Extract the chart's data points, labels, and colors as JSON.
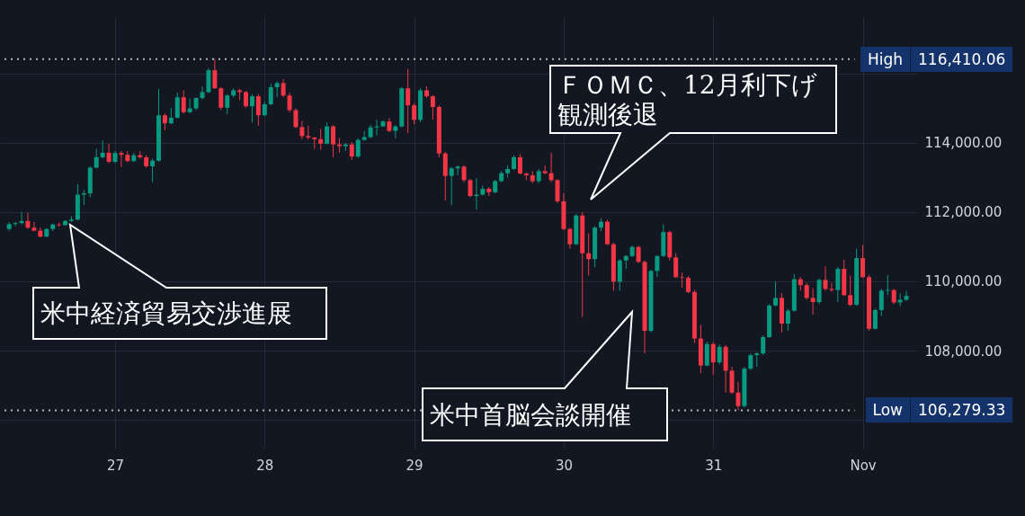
{
  "chart_data": {
    "type": "candlestick",
    "x": [
      "--10-26T07:00",
      "--10-26T08:00",
      "--10-26T09:00",
      "--10-26T10:00",
      "--10-26T11:00",
      "--10-26T12:00",
      "--10-26T13:00",
      "--10-26T14:00",
      "--10-26T15:00",
      "--10-26T16:00",
      "--10-26T17:00",
      "--10-26T18:00",
      "--10-26T19:00",
      "--10-26T20:00",
      "--10-26T21:00",
      "--10-26T22:00",
      "--10-26T23:00",
      "--10-27T00:00",
      "--10-27T01:00",
      "--10-27T02:00",
      "--10-27T03:00",
      "--10-27T04:00",
      "--10-27T05:00",
      "--10-27T06:00",
      "--10-27T07:00",
      "--10-27T08:00",
      "--10-27T09:00",
      "--10-27T10:00",
      "--10-27T11:00",
      "--10-27T12:00",
      "--10-27T13:00",
      "--10-27T14:00",
      "--10-27T15:00",
      "--10-27T16:00",
      "--10-27T17:00",
      "--10-27T18:00",
      "--10-27T19:00",
      "--10-27T20:00",
      "--10-27T21:00",
      "--10-27T22:00",
      "--10-27T23:00",
      "--10-28T00:00",
      "--10-28T01:00",
      "--10-28T02:00",
      "--10-28T03:00",
      "--10-28T04:00",
      "--10-28T05:00",
      "--10-28T06:00",
      "--10-28T07:00",
      "--10-28T08:00",
      "--10-28T09:00",
      "--10-28T10:00",
      "--10-28T11:00",
      "--10-28T12:00",
      "--10-28T13:00",
      "--10-28T14:00",
      "--10-28T15:00",
      "--10-28T16:00",
      "--10-28T17:00",
      "--10-28T18:00",
      "--10-28T19:00",
      "--10-28T20:00",
      "--10-28T21:00",
      "--10-28T22:00",
      "--10-28T23:00",
      "--10-29T00:00",
      "--10-29T01:00",
      "--10-29T02:00",
      "--10-29T03:00",
      "--10-29T04:00",
      "--10-29T05:00",
      "--10-29T06:00",
      "--10-29T07:00",
      "--10-29T08:00",
      "--10-29T09:00",
      "--10-29T10:00",
      "--10-29T11:00",
      "--10-29T12:00",
      "--10-29T13:00",
      "--10-29T14:00",
      "--10-29T15:00",
      "--10-29T16:00",
      "--10-29T17:00",
      "--10-29T18:00",
      "--10-29T19:00",
      "--10-29T20:00",
      "--10-29T21:00",
      "--10-29T22:00",
      "--10-29T23:00",
      "--10-30T00:00",
      "--10-30T01:00",
      "--10-30T02:00",
      "--10-30T03:00",
      "--10-30T04:00",
      "--10-30T05:00",
      "--10-30T06:00",
      "--10-30T07:00",
      "--10-30T08:00",
      "--10-30T09:00",
      "--10-30T10:00",
      "--10-30T11:00",
      "--10-30T12:00",
      "--10-30T13:00",
      "--10-30T14:00",
      "--10-30T15:00",
      "--10-30T16:00",
      "--10-30T17:00",
      "--10-30T18:00",
      "--10-30T19:00",
      "--10-30T20:00",
      "--10-30T21:00",
      "--10-30T22:00",
      "--10-30T23:00",
      "--10-31T00:00",
      "--10-31T01:00",
      "--10-31T02:00",
      "--10-31T03:00",
      "--10-31T04:00",
      "--10-31T05:00",
      "--10-31T06:00",
      "--10-31T07:00",
      "--10-31T08:00",
      "--10-31T09:00",
      "--10-31T10:00",
      "--10-31T11:00",
      "--10-31T12:00",
      "--10-31T13:00",
      "--10-31T14:00",
      "--10-31T15:00",
      "--10-31T16:00",
      "--10-31T17:00",
      "--10-31T18:00",
      "--10-31T19:00",
      "--10-31T20:00",
      "--10-31T21:00",
      "--10-31T22:00",
      "--10-31T23:00",
      "--11-01T00:00",
      "--11-01T01:00",
      "--11-01T02:00",
      "--11-01T03:00",
      "--11-01T04:00",
      "--11-01T05:00",
      "--11-01T06:00",
      "--11-01T07:00"
    ],
    "ohlc": [
      [
        111510,
        111710,
        111460,
        111650
      ],
      [
        111650,
        111720,
        111590,
        111680
      ],
      [
        111680,
        112000,
        111640,
        111740
      ],
      [
        111740,
        111980,
        111510,
        111550
      ],
      [
        111550,
        111710,
        111450,
        111460
      ],
      [
        111460,
        111550,
        111270,
        111290
      ],
      [
        111290,
        111530,
        111270,
        111510
      ],
      [
        111510,
        111660,
        111450,
        111640
      ],
      [
        111640,
        111690,
        111580,
        111620
      ],
      [
        111620,
        111770,
        111600,
        111740
      ],
      [
        111740,
        111880,
        111720,
        111780
      ],
      [
        111780,
        112800,
        111750,
        112500
      ],
      [
        112500,
        112630,
        112200,
        112540
      ],
      [
        112540,
        113320,
        112430,
        113280
      ],
      [
        113280,
        113820,
        113260,
        113580
      ],
      [
        113580,
        114060,
        113540,
        113710
      ],
      [
        113710,
        113970,
        113410,
        113450
      ],
      [
        113450,
        113760,
        113410,
        113700
      ],
      [
        113700,
        113760,
        113300,
        113650
      ],
      [
        113650,
        113760,
        113440,
        113470
      ],
      [
        113470,
        113710,
        113440,
        113640
      ],
      [
        113640,
        113760,
        113540,
        113580
      ],
      [
        113580,
        113640,
        113280,
        113320
      ],
      [
        113320,
        113540,
        112860,
        113480
      ],
      [
        113480,
        115550,
        113450,
        114790
      ],
      [
        114790,
        114840,
        114360,
        114560
      ],
      [
        114560,
        115010,
        114530,
        114720
      ],
      [
        114720,
        115440,
        114700,
        115310
      ],
      [
        115310,
        115510,
        114840,
        114880
      ],
      [
        114880,
        115270,
        114850,
        114990
      ],
      [
        114990,
        115300,
        114940,
        115290
      ],
      [
        115290,
        115630,
        115250,
        115460
      ],
      [
        115460,
        116150,
        115430,
        116090
      ],
      [
        116090,
        116410.06,
        115550,
        115570
      ],
      [
        115570,
        115600,
        114940,
        115010
      ],
      [
        115010,
        115400,
        114820,
        115360
      ],
      [
        115360,
        115570,
        115310,
        115510
      ],
      [
        115510,
        115550,
        115230,
        115460
      ],
      [
        115460,
        115490,
        115010,
        115050
      ],
      [
        115050,
        115400,
        114580,
        115340
      ],
      [
        115340,
        115400,
        114490,
        114790
      ],
      [
        114790,
        115180,
        114770,
        115110
      ],
      [
        115110,
        115700,
        115080,
        115600
      ],
      [
        115600,
        115770,
        115310,
        115720
      ],
      [
        115720,
        115830,
        115310,
        115360
      ],
      [
        115360,
        115440,
        114880,
        114940
      ],
      [
        114940,
        114990,
        114420,
        114450
      ],
      [
        114450,
        114620,
        114100,
        114190
      ],
      [
        114190,
        114490,
        114080,
        114150
      ],
      [
        114150,
        114160,
        113820,
        114100
      ],
      [
        114100,
        114400,
        113800,
        113970
      ],
      [
        113970,
        114580,
        113950,
        114470
      ],
      [
        114470,
        114510,
        113580,
        113950
      ],
      [
        113950,
        114130,
        113710,
        113900
      ],
      [
        113900,
        113990,
        113760,
        113950
      ],
      [
        113950,
        114020,
        113500,
        113600
      ],
      [
        113600,
        114130,
        113560,
        114080
      ],
      [
        114080,
        114340,
        114060,
        114160
      ],
      [
        114160,
        114510,
        114130,
        114440
      ],
      [
        114440,
        114660,
        114210,
        114470
      ],
      [
        114470,
        114650,
        114450,
        114610
      ],
      [
        114610,
        114710,
        114300,
        114340
      ],
      [
        114340,
        114510,
        114130,
        114470
      ],
      [
        114470,
        115600,
        114440,
        115570
      ],
      [
        115570,
        116130,
        114270,
        115080
      ],
      [
        115080,
        115140,
        114530,
        114660
      ],
      [
        114660,
        115570,
        114590,
        115510
      ],
      [
        115510,
        115630,
        115290,
        115340
      ],
      [
        115340,
        115370,
        114660,
        115030
      ],
      [
        115030,
        115080,
        113580,
        113690
      ],
      [
        113690,
        113730,
        112330,
        113040
      ],
      [
        113040,
        113300,
        112200,
        113260
      ],
      [
        113260,
        113350,
        113060,
        113310
      ],
      [
        113310,
        113350,
        112860,
        112920
      ],
      [
        112920,
        112950,
        112430,
        112460
      ],
      [
        112460,
        112980,
        112070,
        112500
      ],
      [
        112500,
        112760,
        112480,
        112670
      ],
      [
        112670,
        112720,
        112460,
        112570
      ],
      [
        112570,
        112930,
        112540,
        112890
      ],
      [
        112890,
        113180,
        112860,
        113120
      ],
      [
        113120,
        113350,
        113000,
        113240
      ],
      [
        113240,
        113640,
        113210,
        113580
      ],
      [
        113580,
        113670,
        113090,
        113110
      ],
      [
        113110,
        113150,
        112920,
        113060
      ],
      [
        113060,
        113180,
        112830,
        112890
      ],
      [
        112890,
        113240,
        112830,
        113180
      ],
      [
        113180,
        113350,
        113090,
        113120
      ],
      [
        113120,
        113710,
        112860,
        112920
      ],
      [
        112920,
        112950,
        112260,
        112310
      ],
      [
        112310,
        112540,
        111480,
        111510
      ],
      [
        111510,
        111550,
        110940,
        111070
      ],
      [
        111070,
        111940,
        111050,
        111900
      ],
      [
        111900,
        112000,
        108970,
        110810
      ],
      [
        110810,
        111390,
        110170,
        110640
      ],
      [
        110640,
        111590,
        110410,
        111550
      ],
      [
        111550,
        111830,
        111450,
        111720
      ],
      [
        111720,
        111770,
        111050,
        111070
      ],
      [
        111070,
        111120,
        109730,
        109990
      ],
      [
        109990,
        110640,
        109730,
        110600
      ],
      [
        110600,
        110750,
        110360,
        110730
      ],
      [
        110730,
        111030,
        110700,
        110990
      ],
      [
        110990,
        111030,
        110530,
        110560
      ],
      [
        110560,
        110600,
        107920,
        108570
      ],
      [
        108570,
        110340,
        108520,
        110300
      ],
      [
        110300,
        110750,
        110120,
        110730
      ],
      [
        110730,
        111640,
        110700,
        111420
      ],
      [
        111420,
        111460,
        110600,
        110690
      ],
      [
        110690,
        110810,
        110100,
        110120
      ],
      [
        110120,
        110250,
        109820,
        110100
      ],
      [
        110100,
        110150,
        109660,
        109690
      ],
      [
        109690,
        109750,
        108220,
        108350
      ],
      [
        108350,
        108740,
        107350,
        107570
      ],
      [
        107570,
        108260,
        107550,
        108190
      ],
      [
        108190,
        108250,
        107310,
        107660
      ],
      [
        107660,
        108180,
        107610,
        108110
      ],
      [
        108110,
        108160,
        106790,
        107420
      ],
      [
        107420,
        107530,
        106750,
        106790
      ],
      [
        106790,
        107100,
        106279.33,
        106400
      ],
      [
        106400,
        107530,
        106360,
        107480
      ],
      [
        107480,
        107920,
        107440,
        107870
      ],
      [
        107870,
        107960,
        107530,
        107920
      ],
      [
        107920,
        108440,
        107870,
        108390
      ],
      [
        108390,
        109340,
        108370,
        109300
      ],
      [
        109300,
        109990,
        109280,
        109520
      ],
      [
        109520,
        109660,
        108520,
        108780
      ],
      [
        108780,
        109210,
        108570,
        109150
      ],
      [
        109150,
        110210,
        109130,
        110060
      ],
      [
        110060,
        110120,
        109730,
        109890
      ],
      [
        109890,
        109950,
        109470,
        109520
      ],
      [
        109520,
        109800,
        109040,
        109400
      ],
      [
        109400,
        110080,
        109340,
        110040
      ],
      [
        110040,
        110430,
        109730,
        109780
      ],
      [
        109780,
        109950,
        109690,
        109750
      ],
      [
        109750,
        110410,
        109400,
        110360
      ],
      [
        110360,
        110620,
        109580,
        109600
      ],
      [
        109600,
        110170,
        109280,
        109320
      ],
      [
        109320,
        110940,
        109300,
        110670
      ],
      [
        110670,
        111050,
        110100,
        110120
      ],
      [
        110120,
        110180,
        108570,
        108630
      ],
      [
        108630,
        109210,
        108610,
        109170
      ],
      [
        109170,
        109780,
        109000,
        109730
      ],
      [
        109730,
        110180,
        109600,
        109750
      ],
      [
        109750,
        109780,
        109340,
        109390
      ],
      [
        109390,
        109650,
        109280,
        109470
      ],
      [
        109470,
        109730,
        109430,
        109580
      ]
    ],
    "colors": [
      "#089981",
      "#089981",
      "#089981",
      "#f23645",
      "#f23645",
      "#f23645",
      "#089981",
      "#089981",
      "#f23645",
      "#089981",
      "#089981",
      "#089981",
      "#089981",
      "#089981",
      "#089981",
      "#089981",
      "#f23645",
      "#089981",
      "#f23645",
      "#f23645",
      "#089981",
      "#f23645",
      "#f23645",
      "#089981",
      "#089981",
      "#f23645",
      "#089981",
      "#089981",
      "#f23645",
      "#089981",
      "#089981",
      "#089981",
      "#089981",
      "#f23645",
      "#f23645",
      "#089981",
      "#089981",
      "#f23645",
      "#f23645",
      "#089981",
      "#f23645",
      "#089981",
      "#089981",
      "#089981",
      "#f23645",
      "#f23645",
      "#f23645",
      "#f23645",
      "#f23645",
      "#f23645",
      "#f23645",
      "#089981",
      "#f23645",
      "#f23645",
      "#089981",
      "#f23645",
      "#089981",
      "#089981",
      "#089981",
      "#089981",
      "#089981",
      "#f23645",
      "#089981",
      "#089981",
      "#f23645",
      "#f23645",
      "#089981",
      "#f23645",
      "#f23645",
      "#f23645",
      "#f23645",
      "#089981",
      "#089981",
      "#f23645",
      "#f23645",
      "#089981",
      "#089981",
      "#f23645",
      "#089981",
      "#089981",
      "#089981",
      "#089981",
      "#f23645",
      "#f23645",
      "#f23645",
      "#089981",
      "#f23645",
      "#f23645",
      "#f23645",
      "#f23645",
      "#f23645",
      "#089981",
      "#f23645",
      "#f23645",
      "#089981",
      "#089981",
      "#f23645",
      "#f23645",
      "#089981",
      "#089981",
      "#089981",
      "#f23645",
      "#f23645",
      "#089981",
      "#089981",
      "#089981",
      "#f23645",
      "#f23645",
      "#f23645",
      "#f23645",
      "#f23645",
      "#f23645",
      "#089981",
      "#f23645",
      "#089981",
      "#f23645",
      "#f23645",
      "#f23645",
      "#089981",
      "#089981",
      "#089981",
      "#089981",
      "#089981",
      "#089981",
      "#f23645",
      "#089981",
      "#089981",
      "#f23645",
      "#f23645",
      "#f23645",
      "#089981",
      "#f23645",
      "#f23645",
      "#089981",
      "#f23645",
      "#f23645",
      "#089981",
      "#f23645",
      "#f23645",
      "#089981",
      "#089981",
      "#089981",
      "#f23645",
      "#089981",
      "#089981"
    ],
    "xlim": [
      "--10-26T06:15",
      "--11-01T08:00"
    ],
    "xticks": [
      {
        "value": "--10-27",
        "label": "27"
      },
      {
        "value": "--10-28",
        "label": "28"
      },
      {
        "value": "--10-29",
        "label": "29"
      },
      {
        "value": "--10-30",
        "label": "30"
      },
      {
        "value": "--10-31",
        "label": "31"
      },
      {
        "value": "--11-01",
        "label": "Nov"
      }
    ],
    "ylim": [
      105200,
      117650
    ],
    "yticks": [
      {
        "value": 106000,
        "label": null
      },
      {
        "value": 108000,
        "label": "108,000.00"
      },
      {
        "value": 110000,
        "label": "110,000.00"
      },
      {
        "value": 112000,
        "label": "112,000.00"
      },
      {
        "value": 114000,
        "label": "114,000.00"
      },
      {
        "value": 116000,
        "label": null
      }
    ],
    "grid": true,
    "ref_lines": [
      {
        "axis": "y",
        "value": 116410.06,
        "label": "High",
        "color": "#b2b5be",
        "line_style": "dotted"
      },
      {
        "axis": "y",
        "value": 106279.33,
        "label": "Low",
        "color": "#b2b5be",
        "line_style": "dotted"
      }
    ],
    "annotations": [
      "米中経済貿易交渉進展",
      "ＦＯＭＣ、12月利下げ観測後退",
      "米中首脳会談開催",
      "116,410.06",
      "106,279.33"
    ]
  }
}
